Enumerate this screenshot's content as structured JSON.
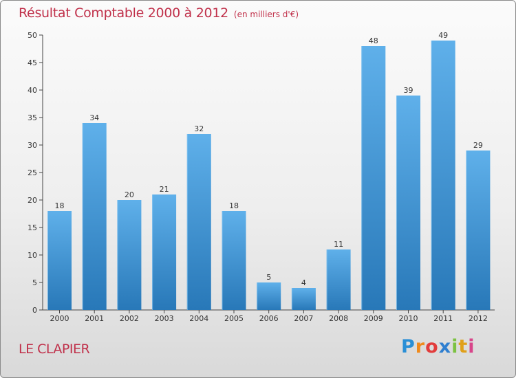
{
  "header": {
    "title": "Résultat Comptable 2000 à 2012",
    "subtitle": "(en milliers d'€)"
  },
  "footer": {
    "place": "LE CLAPIER",
    "logo": [
      "P",
      "r",
      "o",
      "x",
      "i",
      "t",
      "i"
    ]
  },
  "colors": {
    "title": "#c0304a",
    "bar_light": "#5fb0ea",
    "bar_dark": "#2878b8",
    "axis": "#444444"
  },
  "chart_data": {
    "type": "bar",
    "title": "Résultat Comptable 2000 à 2012",
    "subtitle": "(en milliers d'€)",
    "xlabel": "",
    "ylabel": "",
    "categories": [
      "2000",
      "2001",
      "2002",
      "2003",
      "2004",
      "2005",
      "2006",
      "2007",
      "2008",
      "2009",
      "2010",
      "2011",
      "2012"
    ],
    "values": [
      18,
      34,
      20,
      21,
      32,
      18,
      5,
      4,
      11,
      48,
      39,
      49,
      29
    ],
    "ylim": [
      0,
      50
    ],
    "yticks": [
      0,
      5,
      10,
      15,
      20,
      25,
      30,
      35,
      40,
      45,
      50
    ],
    "grid": false,
    "legend": "none"
  }
}
